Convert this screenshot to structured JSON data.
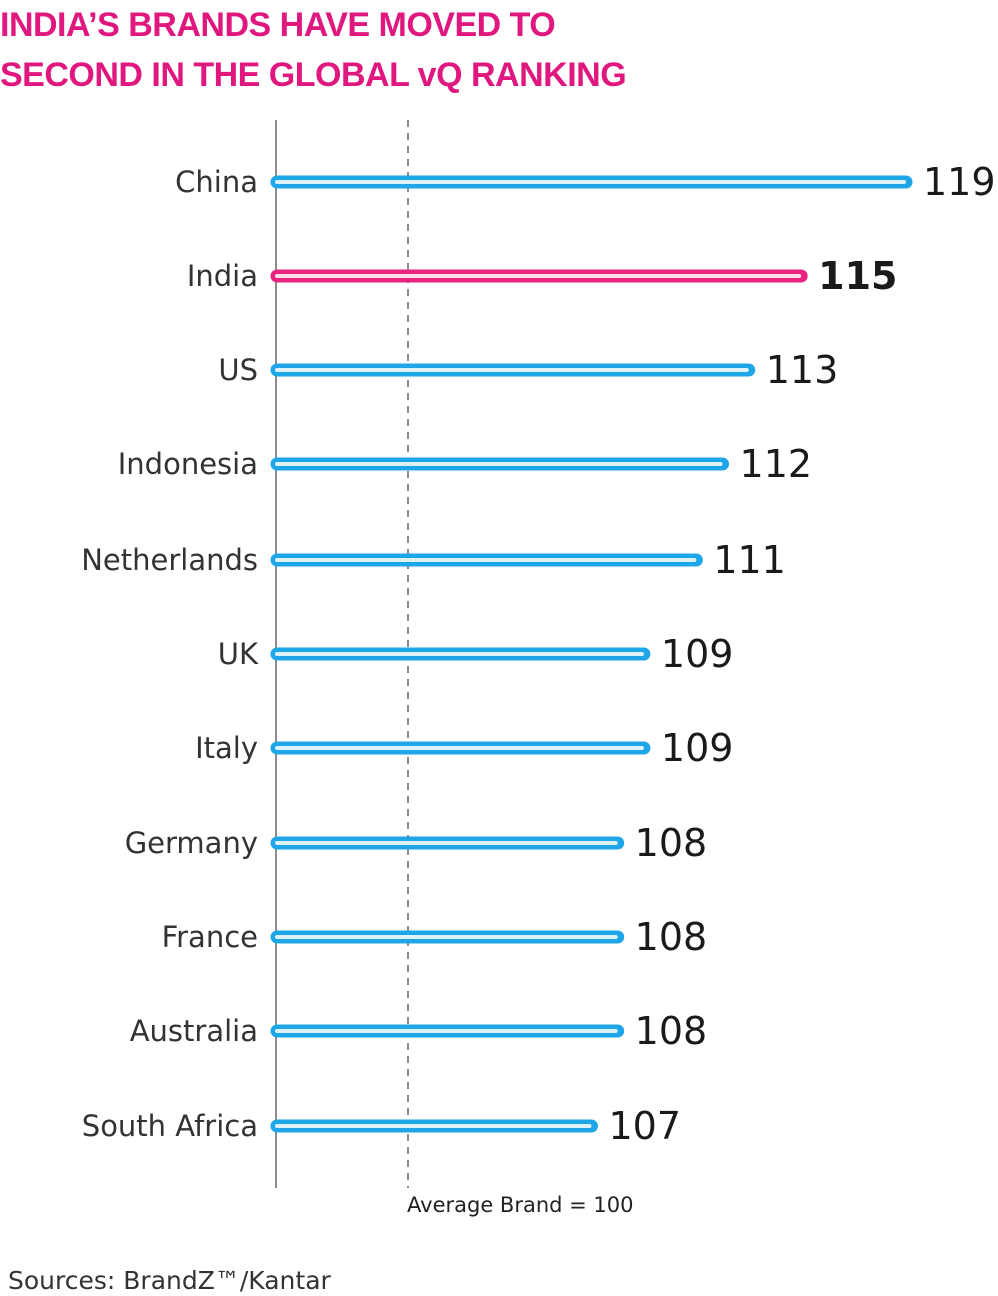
{
  "title_lines": [
    "INDIA’S BRANDS HAVE MOVED TO",
    "SECOND IN THE GLOBAL vQ RANKING"
  ],
  "source": "Sources: BrandZ™/Kantar",
  "colors": {
    "title": "#e0177f",
    "bar": "#1ea6e8",
    "highlight_bar": "#e8247e"
  },
  "chart_data": {
    "type": "bar",
    "orientation": "horizontal",
    "categories": [
      "China",
      "India",
      "US",
      "Indonesia",
      "Netherlands",
      "UK",
      "Italy",
      "Germany",
      "France",
      "Australia",
      "South Africa"
    ],
    "values": [
      119,
      115,
      113,
      112,
      111,
      109,
      109,
      108,
      108,
      108,
      107
    ],
    "value_labels": [
      "119",
      "115",
      "113",
      "112",
      "111",
      "109",
      "109",
      "108",
      "108",
      "108",
      "107"
    ],
    "highlight": "India",
    "reference_line": {
      "value": 100,
      "label": "Average Brand = 100"
    },
    "xlim": [
      95,
      119
    ],
    "grid": false
  }
}
